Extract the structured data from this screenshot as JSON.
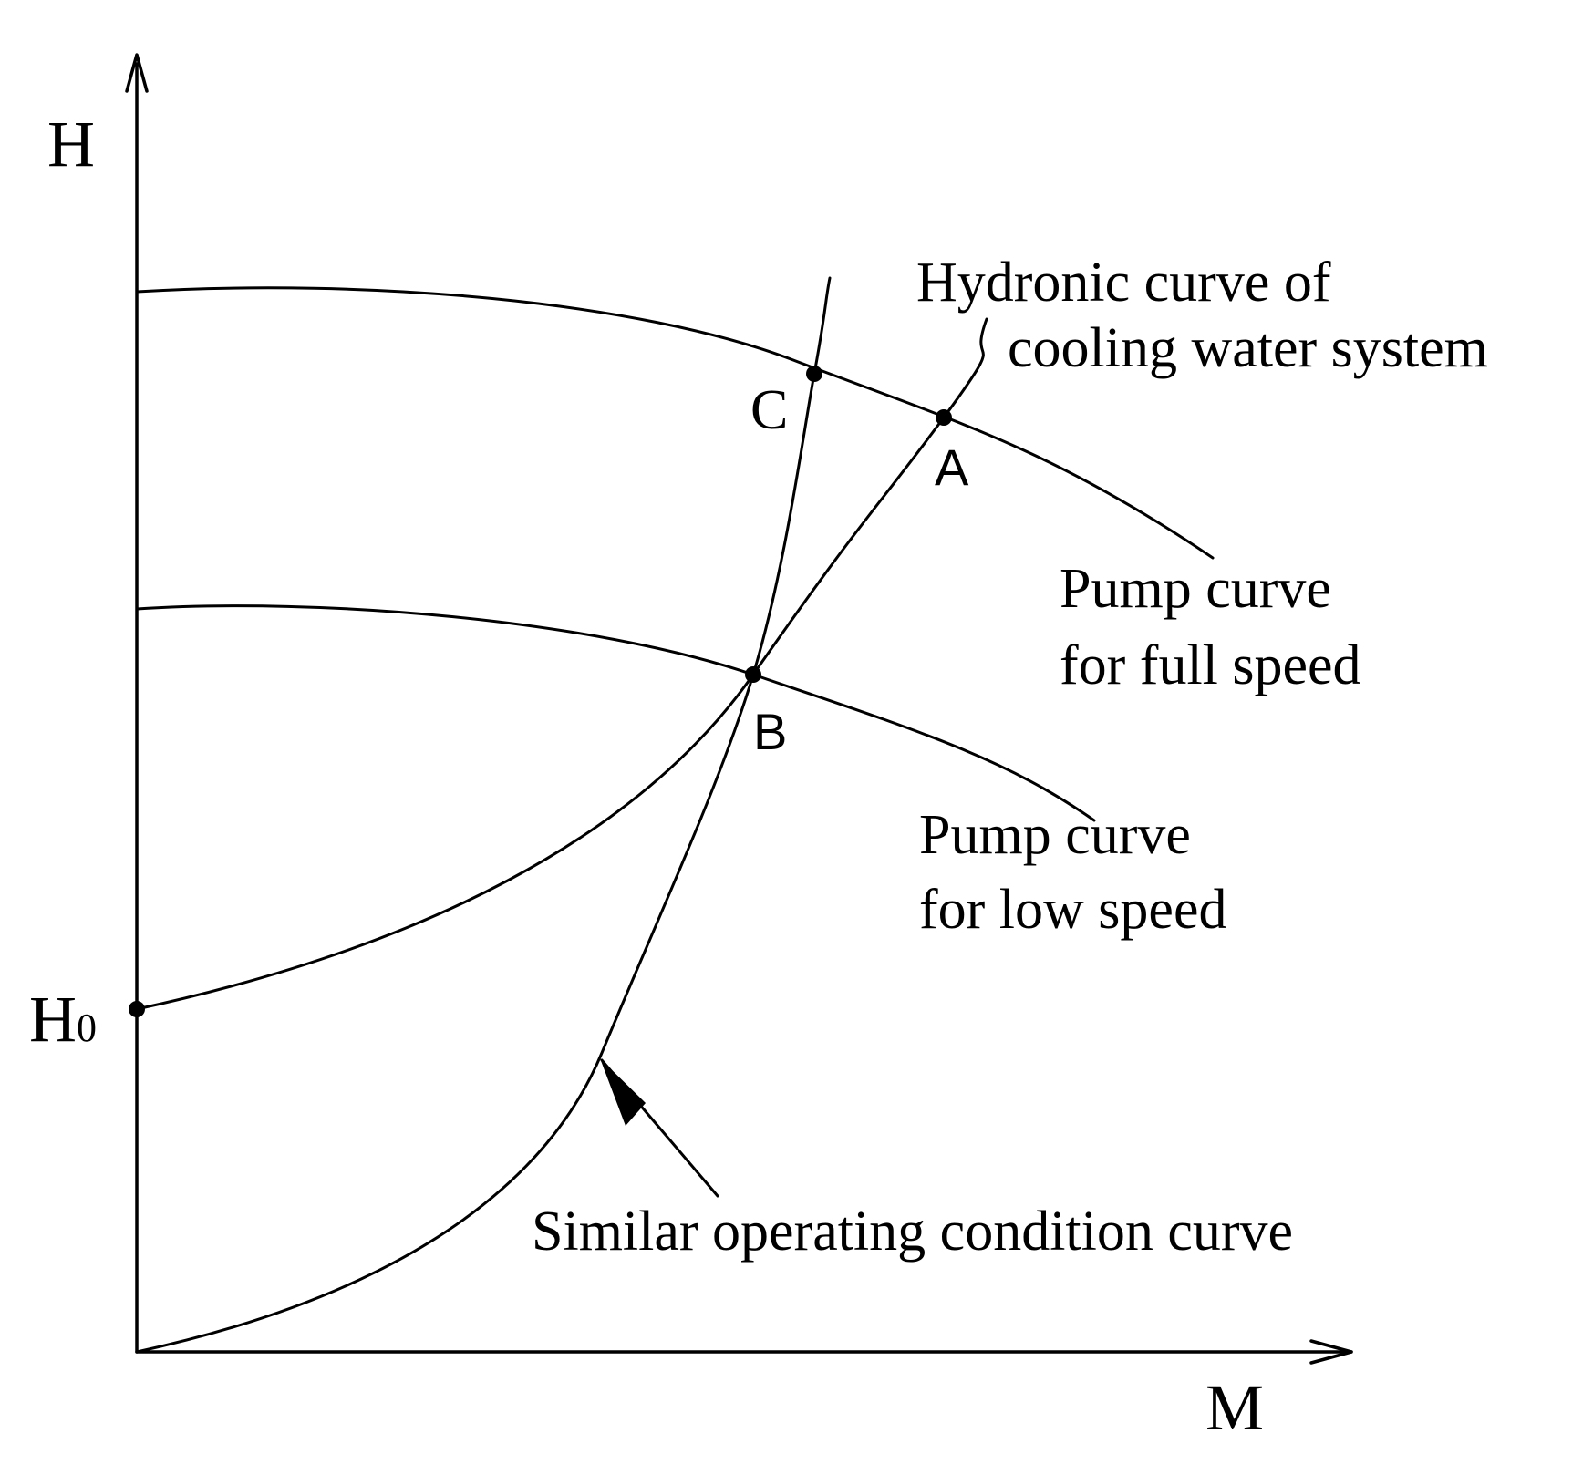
{
  "figure": {
    "axes": {
      "y_label": "H",
      "x_label": "M",
      "h0_label": "H",
      "h0_subscript": "0"
    },
    "points": {
      "a": "A",
      "b": "B",
      "c": "C"
    },
    "labels": {
      "hydronic_line1": "Hydronic curve of",
      "hydronic_line2": "cooling water system",
      "pump_full_line1": "Pump curve",
      "pump_full_line2": "for full speed",
      "pump_low_line1": "Pump curve",
      "pump_low_line2": "for low speed",
      "similar": "Similar operating condition curve"
    },
    "colors": {
      "ink": "#000000",
      "background": "#ffffff"
    }
  }
}
